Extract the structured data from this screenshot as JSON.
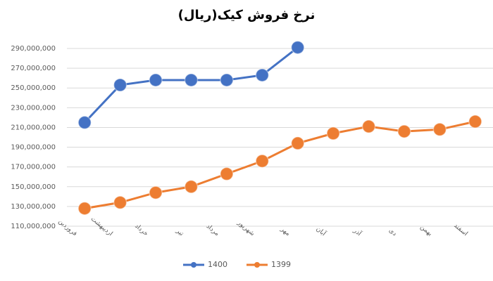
{
  "chart_data": {
    "type": "line",
    "title": "نرخ فروش کیک(ریال)",
    "categories": [
      "فروردین",
      "اردیبهشت",
      "خرداد",
      "تیر",
      "مرداد",
      "شهریور",
      "مهر",
      "آبان",
      "آذر",
      "دی",
      "بهمن",
      "اسفند"
    ],
    "series": [
      {
        "name": "1400",
        "color": "#4472c4",
        "values": [
          215000000,
          253000000,
          258000000,
          258000000,
          258000000,
          263000000,
          291000000,
          null,
          null,
          null,
          null,
          null
        ]
      },
      {
        "name": "1399",
        "color": "#ed7d31",
        "values": [
          128000000,
          134000000,
          144000000,
          150000000,
          163000000,
          176000000,
          194000000,
          204000000,
          211000000,
          206000000,
          208000000,
          216000000
        ]
      }
    ],
    "ylim": [
      110000000,
      290000000
    ],
    "yticks": [
      {
        "value": 110000000,
        "label": "110,000,000"
      },
      {
        "value": 130000000,
        "label": "130,000,000"
      },
      {
        "value": 150000000,
        "label": "150,000,000"
      },
      {
        "value": 170000000,
        "label": "170,000,000"
      },
      {
        "value": 190000000,
        "label": "190,000,000"
      },
      {
        "value": 210000000,
        "label": "210,000,000"
      },
      {
        "value": 230000000,
        "label": "230,000,000"
      },
      {
        "value": 250000000,
        "label": "250,000,000"
      },
      {
        "value": 270000000,
        "label": "270,000,000"
      },
      {
        "value": 290000000,
        "label": "290,000,000"
      }
    ],
    "grid": true,
    "legend": "bottom"
  }
}
